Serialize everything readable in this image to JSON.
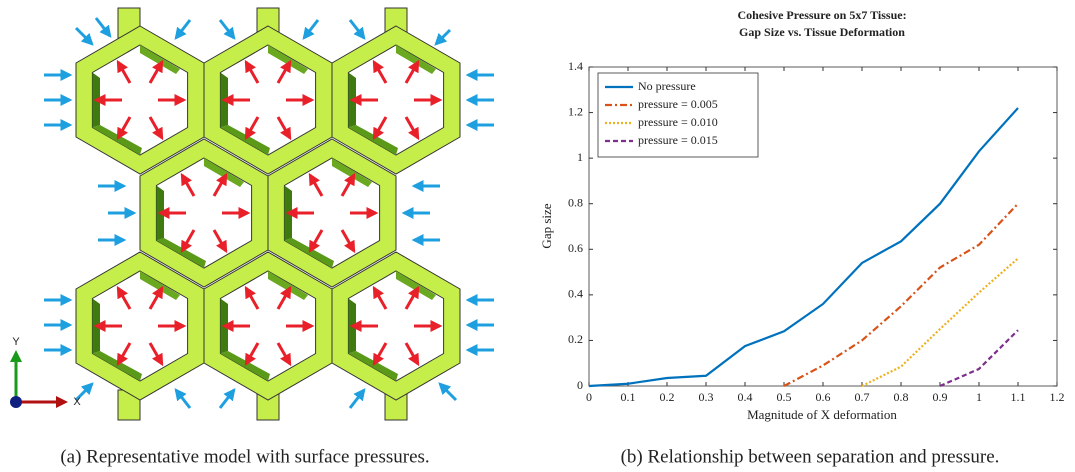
{
  "figure": {
    "captions": [
      "(a) Representative model with surface pressures.",
      "(b) Relationship between separation and pressure."
    ],
    "triad_labels": {
      "y": "Y",
      "x": "X"
    }
  },
  "chart_data": {
    "type": "line",
    "title_lines": [
      "Cohesive Pressure on 5x7 Tissue:",
      "Gap Size vs. Tissue Deformation"
    ],
    "x_label": "Magnitude of X deformation",
    "y_label": "Gap size",
    "x": [
      0,
      0.1,
      0.2,
      0.3,
      0.4,
      0.5,
      0.6,
      0.7,
      0.8,
      0.9,
      1,
      1.1
    ],
    "series": [
      {
        "name": "No pressure",
        "color": "#0072bd",
        "dash": "solid",
        "values": [
          0,
          0.01,
          0.035,
          0.045,
          0.175,
          0.24,
          0.36,
          0.54,
          0.635,
          0.8,
          1.03,
          1.22
        ]
      },
      {
        "name": "pressure = 0.005",
        "color": "#d95319",
        "dash": "dashdot",
        "values": [
          null,
          null,
          null,
          null,
          null,
          0,
          0.09,
          0.2,
          0.35,
          0.52,
          0.62,
          0.8
        ]
      },
      {
        "name": "pressure = 0.010",
        "color": "#edb120",
        "dash": "dotted",
        "values": [
          null,
          null,
          null,
          null,
          null,
          null,
          null,
          0,
          0.085,
          0.25,
          0.41,
          0.56
        ]
      },
      {
        "name": "pressure = 0.015",
        "color": "#7e2f8e",
        "dash": "dashed",
        "values": [
          null,
          null,
          null,
          null,
          null,
          null,
          null,
          null,
          null,
          0,
          0.075,
          0.245
        ]
      }
    ],
    "xlim": [
      0,
      1.2
    ],
    "ylim": [
      0,
      1.4
    ],
    "xticks": [
      0,
      0.1,
      0.2,
      0.3,
      0.4,
      0.5,
      0.6,
      0.7,
      0.8,
      0.9,
      1,
      1.1,
      1.2
    ],
    "yticks": [
      0,
      0.2,
      0.4,
      0.6,
      0.8,
      1,
      1.2,
      1.4
    ],
    "legend": "upper-left",
    "grid": false
  }
}
